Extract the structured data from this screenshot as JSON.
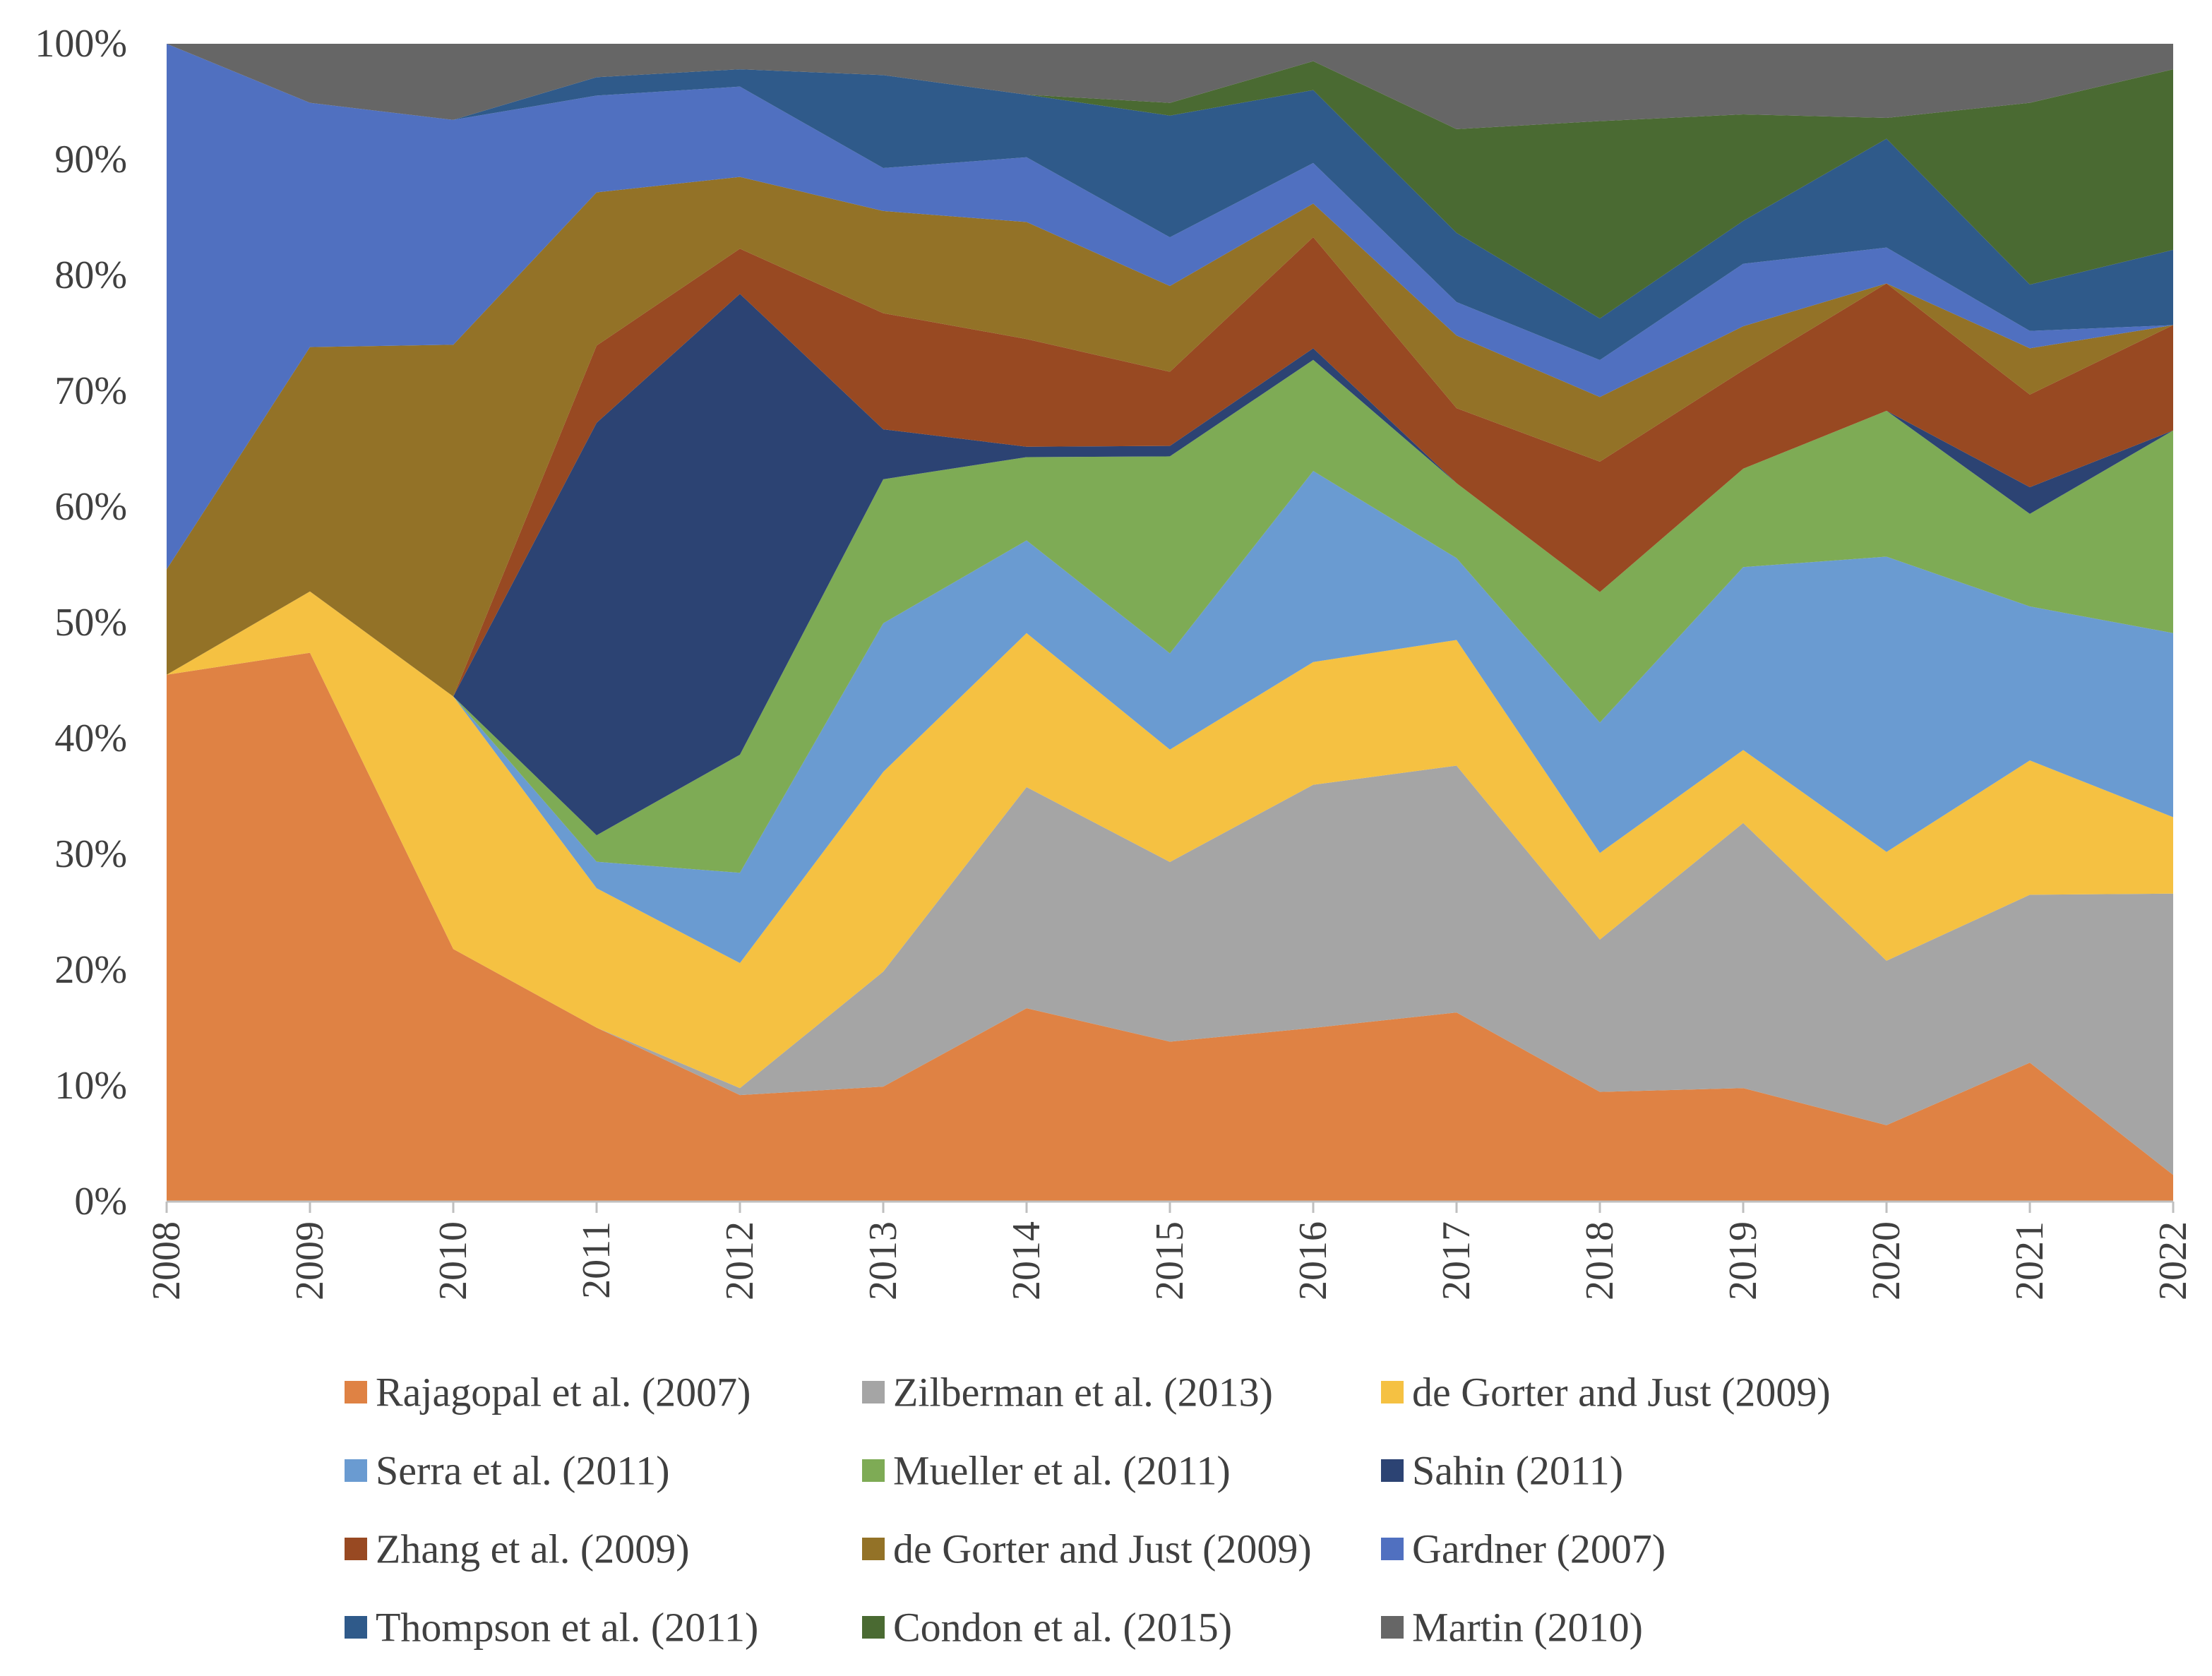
{
  "chart_data": {
    "type": "area",
    "stacked": true,
    "normalized_percent": true,
    "title": "",
    "xlabel": "",
    "ylabel": "",
    "ylim": [
      0,
      100
    ],
    "yticks": [
      "0%",
      "10%",
      "20%",
      "30%",
      "40%",
      "50%",
      "60%",
      "70%",
      "80%",
      "90%",
      "100%"
    ],
    "categories": [
      "2008",
      "2009",
      "2010",
      "2011",
      "2012",
      "2013",
      "2014",
      "2015",
      "2016",
      "2017",
      "2018",
      "2019",
      "2020",
      "2021",
      "2022"
    ],
    "legend_position": "bottom",
    "series": [
      {
        "name": "Rajagopal et al. (2007)",
        "color": "#DF8244",
        "values": [
          45.5,
          47.4,
          21.9,
          15.1,
          9.2,
          9.9,
          16.7,
          13.8,
          15.0,
          16.4,
          9.5,
          9.8,
          6.6,
          12.0,
          2.3
        ]
      },
      {
        "name": "Zilberman et al. (2013)",
        "color": "#A5A5A5",
        "values": [
          0.0,
          0.0,
          0.0,
          0.0,
          0.6,
          9.9,
          19.1,
          15.5,
          21.0,
          21.4,
          13.2,
          22.9,
          14.2,
          14.5,
          24.3
        ]
      },
      {
        "name": "de Gorter and Just (2009)",
        "color": "#F5C142",
        "values": [
          0.0,
          5.3,
          21.9,
          12.1,
          10.8,
          17.2,
          13.3,
          9.7,
          10.6,
          10.9,
          7.5,
          6.3,
          9.4,
          11.6,
          6.6
        ]
      },
      {
        "name": "Serra et al. (2011)",
        "color": "#6A9BD1",
        "values": [
          0.0,
          0.0,
          0.0,
          2.3,
          7.8,
          12.8,
          8.0,
          8.3,
          16.5,
          7.1,
          11.3,
          15.8,
          25.5,
          13.3,
          15.9
        ]
      },
      {
        "name": "Mueller et al. (2011)",
        "color": "#7EAB55",
        "values": [
          0.0,
          0.0,
          0.0,
          2.3,
          10.2,
          12.4,
          7.2,
          17.0,
          9.6,
          6.5,
          11.3,
          8.5,
          12.6,
          8.0,
          17.5
        ]
      },
      {
        "name": "Sahin (2011)",
        "color": "#2C4373",
        "values": [
          0.0,
          0.0,
          0.0,
          35.8,
          39.8,
          4.3,
          0.9,
          0.9,
          1.0,
          0.0,
          0.0,
          0.0,
          0.0,
          2.3,
          0.0
        ]
      },
      {
        "name": "Zhang et al. (2009)",
        "color": "#984922",
        "values": [
          0.0,
          0.0,
          0.0,
          6.7,
          3.9,
          10.0,
          9.3,
          6.4,
          9.6,
          6.5,
          11.3,
          8.5,
          11.0,
          8.0,
          9.1
        ]
      },
      {
        "name": "de Gorter and Just (2009)",
        "color": "#937227",
        "values": [
          9.1,
          21.1,
          30.5,
          13.3,
          6.2,
          8.8,
          10.1,
          7.4,
          2.9,
          6.3,
          5.6,
          3.8,
          0.0,
          4.0,
          0.0
        ]
      },
      {
        "name": "Gardner (2007)",
        "color": "#5070C0",
        "values": [
          45.4,
          21.1,
          19.5,
          8.4,
          7.8,
          3.7,
          5.6,
          4.2,
          3.5,
          2.9,
          3.2,
          5.4,
          3.1,
          1.5,
          0.0
        ]
      },
      {
        "name": "Thompson et al. (2011)",
        "color": "#2F5A8A",
        "values": [
          0.0,
          0.0,
          0.0,
          1.6,
          1.5,
          8.0,
          5.4,
          10.5,
          6.3,
          6.0,
          3.6,
          3.7,
          9.4,
          4.0,
          6.5
        ]
      },
      {
        "name": "Condon et al. (2015)",
        "color": "#4A6A32",
        "values": [
          0.0,
          0.0,
          0.0,
          0.0,
          0.0,
          0.0,
          0.0,
          1.1,
          2.5,
          9.0,
          17.1,
          9.2,
          1.8,
          15.7,
          15.6
        ]
      },
      {
        "name": "Martin (2010)",
        "color": "#666666",
        "values": [
          0.0,
          5.1,
          6.6,
          2.9,
          2.2,
          2.7,
          4.4,
          5.1,
          1.5,
          7.4,
          6.7,
          6.1,
          6.4,
          5.1,
          2.2
        ]
      }
    ]
  }
}
